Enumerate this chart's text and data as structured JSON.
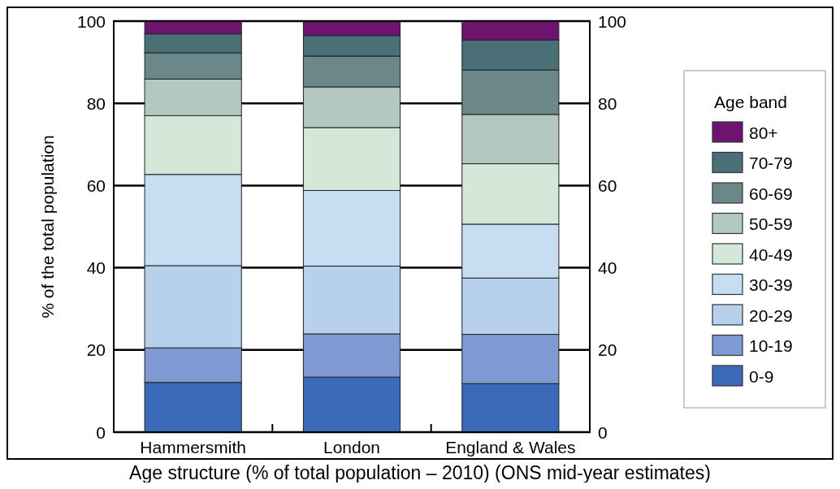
{
  "chart_data": {
    "type": "bar",
    "title": "Age structure (% of total population – 2010) (ONS mid-year estimates)",
    "ylabel": "% of the total population",
    "legend_title": "Age band",
    "categories": [
      "Hammersmith",
      "London",
      "England & Wales"
    ],
    "stacked": true,
    "ylim": [
      0,
      100
    ],
    "yticks": [
      0,
      20,
      40,
      60,
      80,
      100
    ],
    "y2lim": [
      0,
      100
    ],
    "y2ticks": [
      0,
      20,
      40,
      60,
      80,
      100
    ],
    "grid": "y",
    "legend": "right",
    "series": [
      {
        "name": "0-9",
        "color": "#3a6ab8",
        "values": [
          12.1,
          13.4,
          11.8
        ]
      },
      {
        "name": "10-19",
        "color": "#7f9ad2",
        "values": [
          8.4,
          10.5,
          12.0
        ]
      },
      {
        "name": "20-29",
        "color": "#b7d0eb",
        "values": [
          20.0,
          16.5,
          13.7
        ]
      },
      {
        "name": "30-39",
        "color": "#c7ddf2",
        "values": [
          22.2,
          18.4,
          13.1
        ]
      },
      {
        "name": "40-49",
        "color": "#d4e8da",
        "values": [
          14.3,
          15.3,
          14.7
        ]
      },
      {
        "name": "50-59",
        "color": "#b4c8c2",
        "values": [
          8.9,
          9.9,
          12.0
        ]
      },
      {
        "name": "60-69",
        "color": "#6b8789",
        "values": [
          6.4,
          7.5,
          10.8
        ]
      },
      {
        "name": "70-79",
        "color": "#4a6f77",
        "values": [
          4.6,
          5.0,
          7.3
        ]
      },
      {
        "name": "80+",
        "color": "#6e1470",
        "values": [
          3.1,
          3.3,
          4.6
        ]
      }
    ]
  }
}
